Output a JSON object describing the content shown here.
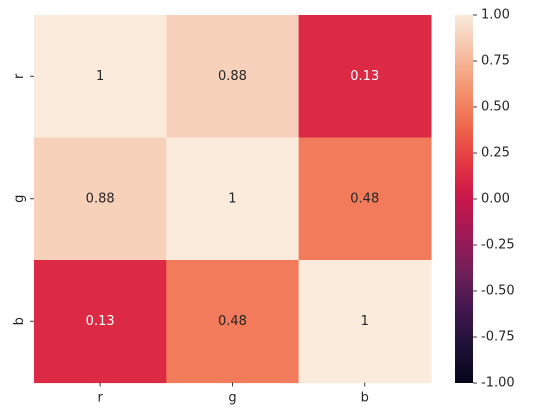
{
  "chart_data": {
    "type": "heatmap",
    "title": "",
    "xlabel": "",
    "ylabel": "",
    "x_categories": [
      "r",
      "g",
      "b"
    ],
    "y_categories": [
      "r",
      "g",
      "b"
    ],
    "values": [
      [
        1,
        0.88,
        0.13
      ],
      [
        0.88,
        1,
        0.48
      ],
      [
        0.13,
        0.48,
        1
      ]
    ],
    "annotations": [
      [
        "1",
        "0.88",
        "0.13"
      ],
      [
        "0.88",
        "1",
        "0.48"
      ],
      [
        "0.13",
        "0.48",
        "1"
      ]
    ],
    "colorbar": {
      "vmin": -1,
      "vmax": 1,
      "ticks": [
        "1.00",
        "0.75",
        "0.50",
        "0.25",
        "0.00",
        "-0.25",
        "-0.50",
        "-0.75",
        "-1.00"
      ],
      "tick_values": [
        1,
        0.75,
        0.5,
        0.25,
        0,
        -0.25,
        -0.5,
        -0.75,
        -1
      ],
      "colormap": "rocket"
    }
  }
}
